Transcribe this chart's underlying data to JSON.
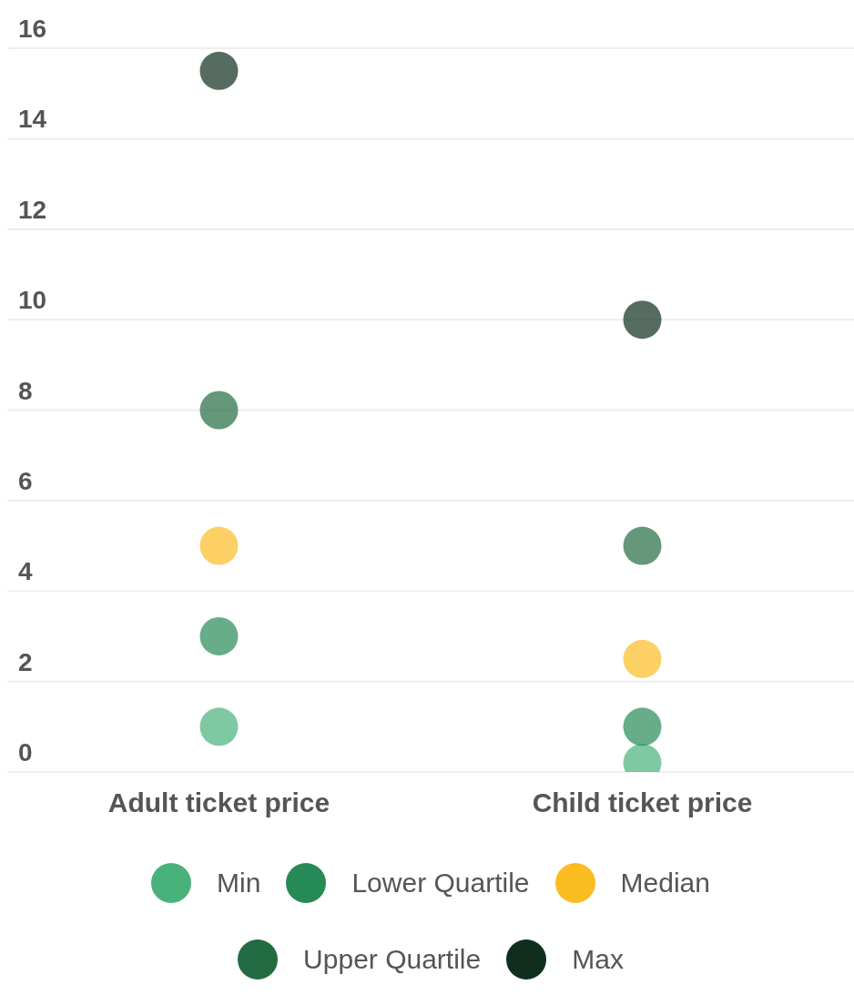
{
  "chart_data": {
    "type": "scatter",
    "categories": [
      "Adult ticket price",
      "Child ticket price"
    ],
    "series": [
      {
        "name": "Min",
        "color": "#48b27a",
        "values": [
          1,
          0.2
        ]
      },
      {
        "name": "Lower Quartile",
        "color": "#258a55",
        "values": [
          3,
          1
        ]
      },
      {
        "name": "Median",
        "color": "#fbbc22",
        "values": [
          5,
          2.5
        ]
      },
      {
        "name": "Upper Quartile",
        "color": "#236b41",
        "values": [
          8,
          5
        ]
      },
      {
        "name": "Max",
        "color": "#0f2e1c",
        "values": [
          15.5,
          10
        ]
      }
    ],
    "ylim": [
      0,
      16
    ],
    "yticks": [
      0,
      2,
      4,
      6,
      8,
      10,
      12,
      14,
      16
    ],
    "grid": "y",
    "legend": "bottom",
    "marker": "circle"
  }
}
